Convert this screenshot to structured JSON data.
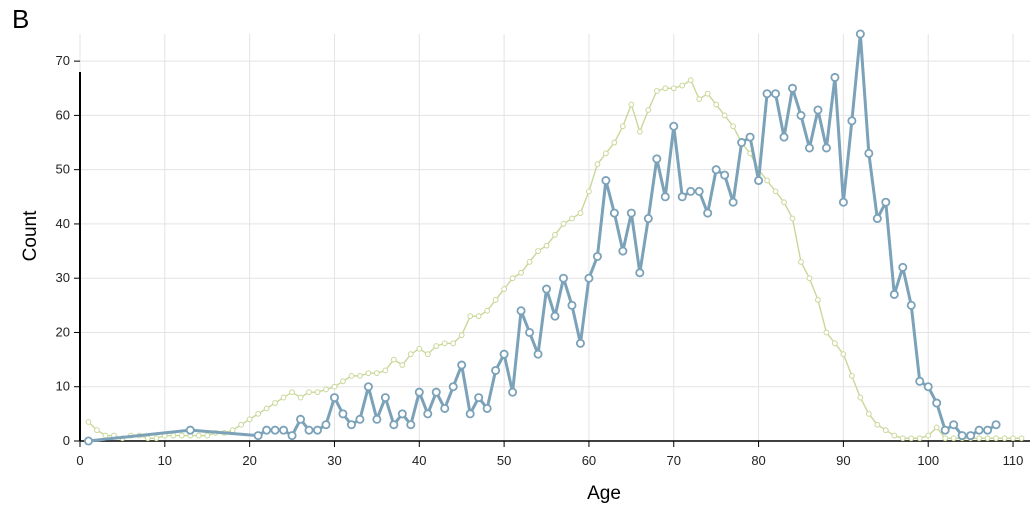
{
  "panel_label": "B",
  "chart_data": {
    "type": "line",
    "title": "",
    "xlabel": "Age",
    "ylabel": "Count",
    "xlim": [
      0,
      112
    ],
    "ylim": [
      0,
      75
    ],
    "xticks": [
      0,
      10,
      20,
      30,
      40,
      50,
      60,
      70,
      80,
      90,
      100,
      110
    ],
    "yticks": [
      0,
      10,
      20,
      30,
      40,
      50,
      60,
      70
    ],
    "grid": true,
    "series": [
      {
        "color": "#c9d89a",
        "marker": "small-circle",
        "x": [
          1,
          2,
          3,
          4,
          5,
          6,
          7,
          8,
          9,
          10,
          11,
          12,
          13,
          14,
          15,
          16,
          17,
          18,
          19,
          20,
          21,
          22,
          23,
          24,
          25,
          26,
          27,
          28,
          29,
          30,
          31,
          32,
          33,
          34,
          35,
          36,
          37,
          38,
          39,
          40,
          41,
          42,
          43,
          44,
          45,
          46,
          47,
          48,
          49,
          50,
          51,
          52,
          53,
          54,
          55,
          56,
          57,
          58,
          59,
          60,
          61,
          62,
          63,
          64,
          65,
          66,
          67,
          68,
          69,
          70,
          71,
          72,
          73,
          74,
          75,
          76,
          77,
          78,
          79,
          80,
          81,
          82,
          83,
          84,
          85,
          86,
          87,
          88,
          89,
          90,
          91,
          92,
          93,
          94,
          95,
          96,
          97,
          98,
          99,
          100,
          101,
          102,
          103,
          104,
          105,
          106,
          107,
          108,
          109,
          110,
          111
        ],
        "y": [
          3.5,
          2,
          1,
          1,
          0.5,
          1,
          1,
          0.5,
          0.5,
          1,
          1,
          1,
          1,
          1,
          1,
          1.5,
          1.5,
          2,
          3,
          4,
          5,
          6,
          7,
          8,
          9,
          8,
          9,
          9,
          9.5,
          10,
          11,
          12,
          12,
          12.5,
          12.5,
          13,
          15,
          14,
          16,
          17,
          16,
          17.5,
          18,
          18,
          19.5,
          23,
          23,
          24,
          26,
          28,
          30,
          31,
          33,
          35,
          36,
          38,
          40,
          41,
          42,
          46,
          51,
          53,
          55,
          58,
          62,
          57,
          61,
          64.5,
          65,
          65,
          65.5,
          66.5,
          63,
          64,
          62,
          60,
          58,
          55,
          53,
          50,
          48,
          46,
          44,
          41,
          33,
          30,
          26,
          20,
          18,
          16,
          12,
          8,
          5,
          3,
          2,
          1,
          0.5,
          0.5,
          0.5,
          1,
          2.5,
          0.5,
          0.5,
          0.5,
          0.5,
          0.5,
          0.5,
          0.5,
          0.5,
          0.5,
          0.5
        ]
      },
      {
        "color": "#7ba2b8",
        "marker": "open-circle",
        "x": [
          1,
          13,
          21,
          22,
          23,
          24,
          25,
          26,
          27,
          28,
          29,
          30,
          31,
          32,
          33,
          34,
          35,
          36,
          37,
          38,
          39,
          40,
          41,
          42,
          43,
          44,
          45,
          46,
          47,
          48,
          49,
          50,
          51,
          52,
          53,
          54,
          55,
          56,
          57,
          58,
          59,
          60,
          61,
          62,
          63,
          64,
          65,
          66,
          67,
          68,
          69,
          70,
          71,
          72,
          73,
          74,
          75,
          76,
          77,
          78,
          79,
          80,
          81,
          82,
          83,
          84,
          85,
          86,
          87,
          88,
          89,
          90,
          91,
          92,
          93,
          94,
          95,
          96,
          97,
          98,
          99,
          100,
          101,
          102,
          103,
          104,
          105,
          106,
          107,
          108
        ],
        "y": [
          0,
          2,
          1,
          2,
          2,
          2,
          1,
          4,
          2,
          2,
          3,
          8,
          5,
          3,
          4,
          10,
          4,
          8,
          3,
          5,
          3,
          9,
          5,
          9,
          6,
          10,
          14,
          5,
          8,
          6,
          13,
          16,
          9,
          24,
          20,
          16,
          28,
          23,
          30,
          25,
          18,
          30,
          34,
          48,
          42,
          35,
          42,
          31,
          41,
          52,
          45,
          58,
          45,
          46,
          46,
          42,
          50,
          49,
          44,
          55,
          56,
          48,
          64,
          64,
          56,
          65,
          60,
          54,
          61,
          54,
          67,
          44,
          59,
          75,
          53,
          41,
          44,
          27,
          32,
          25,
          11,
          10,
          7,
          2,
          3,
          1,
          1,
          2,
          2,
          3
        ]
      }
    ]
  }
}
